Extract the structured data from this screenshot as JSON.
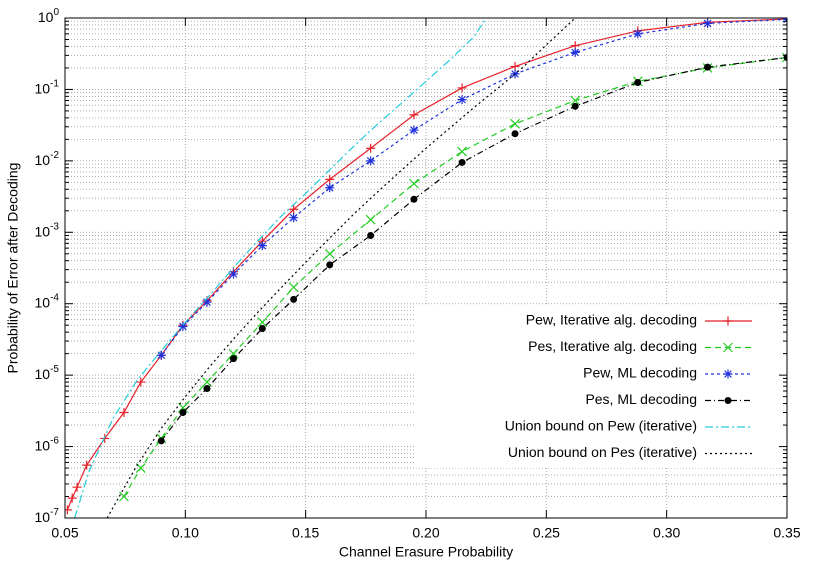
{
  "chart_data": {
    "type": "line",
    "xlabel": "Channel Erasure Probability",
    "ylabel": "Probability of Error after Decoding",
    "xlim": [
      0.05,
      0.35
    ],
    "ylim": [
      1e-07,
      1
    ],
    "ylog": true,
    "grid": true,
    "minor_grid": true,
    "legend": "lower right",
    "xticks": [
      0.05,
      {
        "value": 0.1,
        "label": "0.10"
      },
      0.15,
      {
        "value": 0.2,
        "label": "0.20"
      },
      0.25,
      {
        "value": 0.3,
        "label": "0.30"
      },
      0.35
    ],
    "yticks": [
      {
        "value": 1e-07,
        "label": "10^-7"
      },
      {
        "value": 1e-06,
        "label": "10^-6"
      },
      {
        "value": 1e-05,
        "label": "10^-5"
      },
      {
        "value": 0.0001,
        "label": "10^-4"
      },
      {
        "value": 0.001,
        "label": "10^-3"
      },
      {
        "value": 0.01,
        "label": "10^-2"
      },
      {
        "value": 0.1,
        "label": "10^-1"
      },
      {
        "value": 1,
        "label": "10^0"
      }
    ],
    "series": [
      {
        "name": "Pew, Iterative alg. decoding",
        "color": "#e8202a",
        "dash": "none",
        "marker": "plus",
        "x": [
          0.051,
          0.053,
          0.055,
          0.059,
          0.0665,
          0.0745,
          0.0815,
          0.09,
          0.099,
          0.109,
          0.12,
          0.132,
          0.145,
          0.16,
          0.177,
          0.195,
          0.215,
          0.237,
          0.262,
          0.288,
          0.317,
          0.35
        ],
        "values": [
          1.3e-07,
          1.9e-07,
          2.7e-07,
          5.5e-07,
          1.3e-06,
          3e-06,
          8e-06,
          1.9e-05,
          5e-05,
          0.00011,
          0.00028,
          0.00075,
          0.0021,
          0.0055,
          0.015,
          0.044,
          0.105,
          0.21,
          0.41,
          0.66,
          0.87,
          0.97
        ]
      },
      {
        "name": "Pes, Iterative alg. decoding",
        "color": "#22cc22",
        "dash": "6,4",
        "marker": "cross",
        "x": [
          0.0745,
          0.0815,
          0.09,
          0.099,
          0.109,
          0.12,
          0.132,
          0.145,
          0.16,
          0.177,
          0.195,
          0.215,
          0.237,
          0.262,
          0.288,
          0.317,
          0.35
        ],
        "values": [
          2e-07,
          5e-07,
          1.3e-06,
          3.5e-06,
          8e-06,
          2e-05,
          5.5e-05,
          0.00017,
          0.0005,
          0.0015,
          0.0048,
          0.0135,
          0.033,
          0.07,
          0.13,
          0.2,
          0.28
        ]
      },
      {
        "name": "Pew, ML decoding",
        "color": "#2233dd",
        "dash": "3,3",
        "marker": "star",
        "x": [
          0.09,
          0.099,
          0.109,
          0.12,
          0.132,
          0.145,
          0.16,
          0.177,
          0.195,
          0.215,
          0.237,
          0.262,
          0.288,
          0.317,
          0.35
        ],
        "values": [
          1.9e-05,
          4.8e-05,
          0.000105,
          0.00026,
          0.00065,
          0.0016,
          0.0042,
          0.01,
          0.027,
          0.072,
          0.165,
          0.33,
          0.6,
          0.84,
          0.96
        ]
      },
      {
        "name": "Pes, ML decoding",
        "color": "#000000",
        "dash": "6,3,1,3",
        "marker": "dot",
        "x": [
          0.09,
          0.099,
          0.109,
          0.12,
          0.132,
          0.145,
          0.16,
          0.177,
          0.195,
          0.215,
          0.237,
          0.262,
          0.288,
          0.317,
          0.35
        ],
        "values": [
          1.2e-06,
          3e-06,
          6.5e-06,
          1.7e-05,
          4.5e-05,
          0.000115,
          0.00035,
          0.0009,
          0.0029,
          0.0095,
          0.024,
          0.058,
          0.125,
          0.205,
          0.28
        ]
      },
      {
        "name": "Union bound on Pew (iterative)",
        "color": "#22ccdd",
        "dash": "8,3,2,3",
        "marker": "none",
        "x": [
          0.054,
          0.06,
          0.07,
          0.08,
          0.09,
          0.1,
          0.11,
          0.12,
          0.13,
          0.14,
          0.15,
          0.16,
          0.17,
          0.18,
          0.19,
          0.2,
          0.21,
          0.22,
          0.225
        ],
        "values": [
          1e-07,
          4.5e-07,
          2.5e-06,
          8.5e-06,
          2.2e-05,
          5.5e-05,
          0.00013,
          0.00032,
          0.00075,
          0.0017,
          0.0035,
          0.0075,
          0.016,
          0.033,
          0.065,
          0.13,
          0.26,
          0.55,
          1
        ]
      },
      {
        "name": "Union bound on Pes (iterative)",
        "color": "#000000",
        "dash": "2,3",
        "marker": "none",
        "x": [
          0.0675,
          0.075,
          0.08,
          0.09,
          0.1,
          0.11,
          0.12,
          0.13,
          0.14,
          0.15,
          0.16,
          0.17,
          0.18,
          0.19,
          0.2,
          0.21,
          0.22,
          0.23,
          0.24,
          0.25,
          0.262
        ],
        "values": [
          1e-07,
          2.8e-07,
          5.5e-07,
          1.8e-06,
          5e-06,
          1.3e-05,
          3.2e-05,
          7.5e-05,
          0.00017,
          0.00038,
          0.00083,
          0.0018,
          0.0037,
          0.0075,
          0.015,
          0.029,
          0.056,
          0.105,
          0.2,
          0.42,
          1
        ]
      }
    ]
  }
}
